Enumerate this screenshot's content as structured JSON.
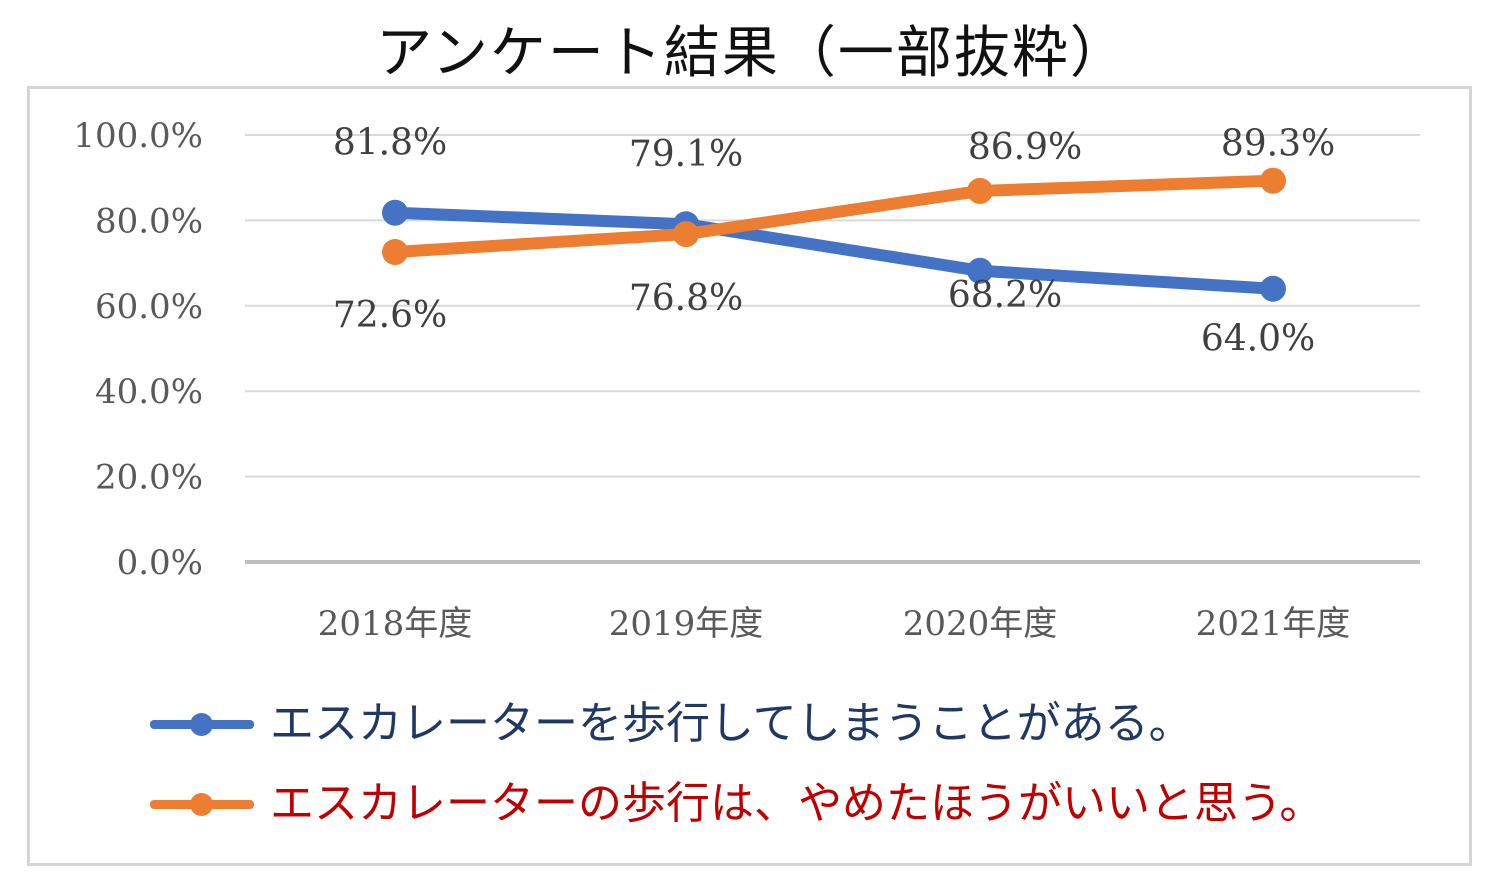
{
  "title": "アンケート結果（一部抜粋）",
  "chart_data": {
    "type": "line",
    "categories": [
      "2018年度",
      "2019年度",
      "2020年度",
      "2021年度"
    ],
    "ylim": [
      0,
      100
    ],
    "yticks": [
      "0.0%",
      "20.0%",
      "40.0%",
      "60.0%",
      "80.0%",
      "100.0%"
    ],
    "series": [
      {
        "name": "エスカレーターを歩行してしまうことがある。",
        "color": "#4472c4",
        "text_color": "#1f3864",
        "values": [
          81.8,
          79.1,
          68.2,
          64.0
        ],
        "labels": [
          "81.8%",
          "79.1%",
          "68.2%",
          "64.0%"
        ]
      },
      {
        "name": "エスカレーターの歩行は、やめたほうがいいと思う。",
        "color": "#ed7d31",
        "text_color": "#c00000",
        "values": [
          72.6,
          76.8,
          86.9,
          89.3
        ],
        "labels": [
          "72.6%",
          "76.8%",
          "86.9%",
          "89.3%"
        ]
      }
    ],
    "legend_position": "bottom",
    "grid": true
  }
}
